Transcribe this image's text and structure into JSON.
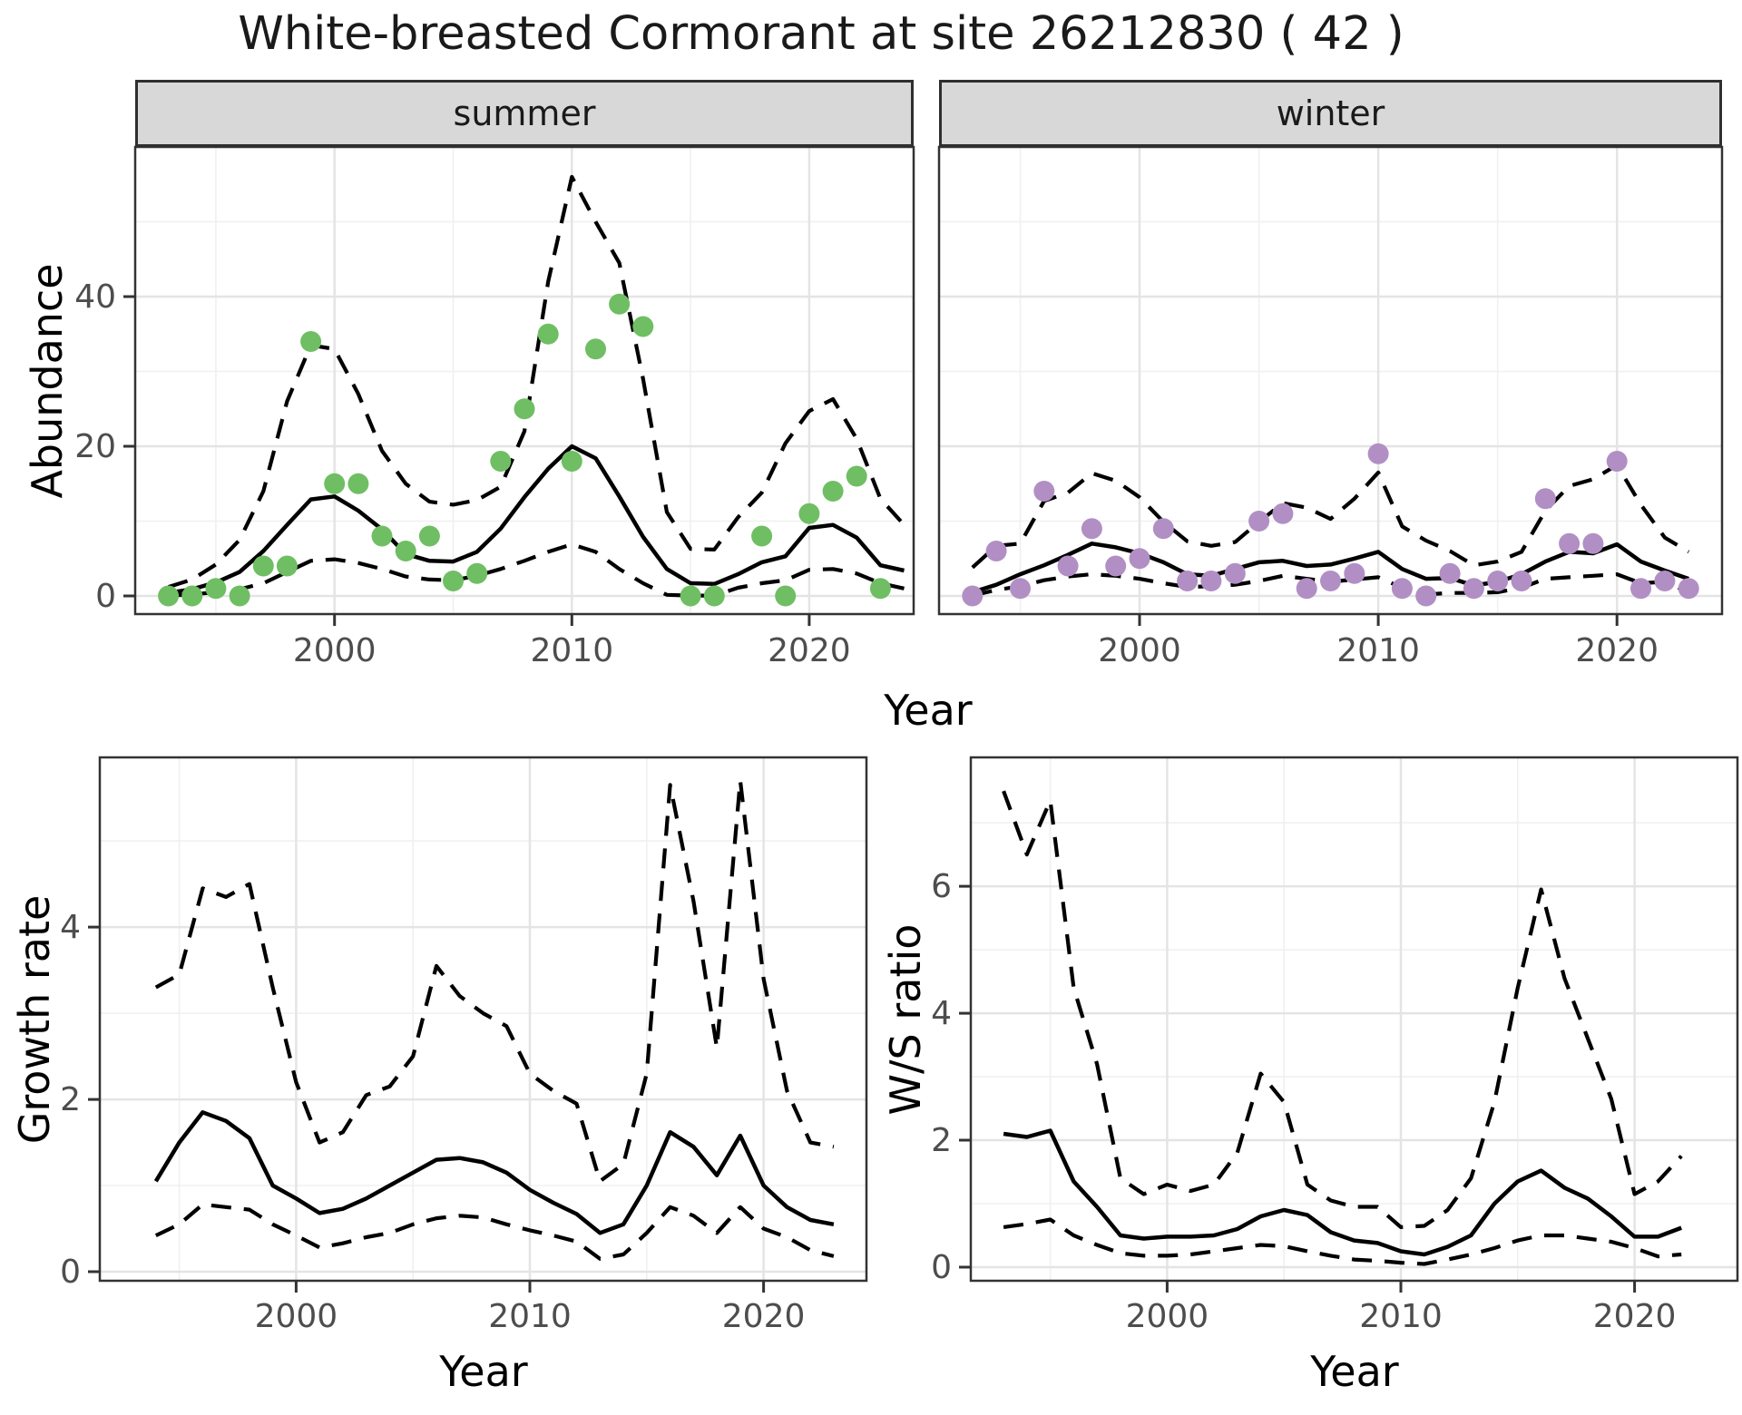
{
  "title": "White-breasted Cormorant at site 26212830 ( 42 )",
  "colors": {
    "summer_point": "#6FBE63",
    "winter_point": "#B18FC4",
    "fit_line": "#000000",
    "ci_line": "#000000",
    "strip_fill": "#D8D8D8",
    "panel_border": "#333333",
    "grid_major": "#E4E4E4",
    "grid_minor": "#F0F0F0",
    "tick_color": "#333333",
    "tick_label_color": "#4D4D4D"
  },
  "chart_data": [
    {
      "id": "abundance-summer",
      "panel": "summer",
      "type": "scatter",
      "facet_label": "summer",
      "xlabel": "Year",
      "ylabel": "Abundance",
      "xlim": [
        1991.6,
        2024.4
      ],
      "ylim": [
        -2.42,
        60.0
      ],
      "x_ticks": [
        2000,
        2010,
        2020
      ],
      "x_minor": [
        1995,
        2005,
        2015
      ],
      "y_ticks": [
        0,
        20,
        40
      ],
      "y_minor": [
        10,
        30,
        50
      ],
      "points": {
        "years": [
          1993,
          1994,
          1995,
          1996,
          1997,
          1998,
          1999,
          2000,
          2001,
          2002,
          2003,
          2004,
          2005,
          2006,
          2007,
          2008,
          2009,
          2010,
          2011,
          2012,
          2013,
          2015,
          2016,
          2018,
          2019,
          2020,
          2021,
          2022,
          2023
        ],
        "values": [
          0,
          0,
          1,
          0,
          4,
          4,
          34,
          15,
          15,
          8,
          6,
          8,
          2,
          3,
          18,
          25,
          35,
          18,
          33,
          39,
          36,
          0,
          0,
          8,
          0,
          11,
          14,
          16,
          1
        ]
      },
      "series": [
        {
          "name": "lower CI",
          "style": "dashed",
          "years": [
            1993,
            1994,
            1995,
            1996,
            1997,
            1998,
            1999,
            2000,
            2001,
            2002,
            2003,
            2004,
            2005,
            2006,
            2007,
            2008,
            2009,
            2010,
            2011,
            2012,
            2013,
            2014,
            2015,
            2016,
            2017,
            2018,
            2019,
            2020,
            2021,
            2022,
            2023,
            2024
          ],
          "values": [
            0.05,
            0.2,
            0.5,
            0.9,
            1.7,
            3.2,
            4.7,
            4.9,
            4.4,
            3.6,
            2.6,
            2.2,
            2.1,
            2.7,
            3.6,
            4.7,
            5.9,
            6.9,
            5.9,
            3.6,
            1.7,
            0.15,
            0.05,
            0.05,
            1.1,
            1.7,
            2.1,
            3.5,
            3.6,
            3.0,
            1.7,
            1.0
          ]
        },
        {
          "name": "upper CI",
          "style": "dashed",
          "years": [
            1993,
            1994,
            1995,
            1996,
            1997,
            1998,
            1999,
            2000,
            2001,
            2002,
            2003,
            2004,
            2005,
            2006,
            2007,
            2008,
            2009,
            2010,
            2011,
            2012,
            2013,
            2014,
            2015,
            2016,
            2017,
            2018,
            2019,
            2020,
            2021,
            2022,
            2023,
            2024
          ],
          "values": [
            1.2,
            2.2,
            4.2,
            7.5,
            14,
            26,
            33.5,
            33,
            27,
            19.4,
            15,
            12.6,
            12.2,
            12.8,
            14.6,
            22,
            42,
            56,
            50,
            44.5,
            29,
            11.2,
            6.3,
            6.2,
            10.5,
            13.8,
            20.4,
            24.7,
            26.3,
            21,
            13,
            9.5
          ]
        },
        {
          "name": "model fit",
          "style": "solid",
          "years": [
            1993,
            1994,
            1995,
            1996,
            1997,
            1998,
            1999,
            2000,
            2001,
            2002,
            2003,
            2004,
            2005,
            2006,
            2007,
            2008,
            2009,
            2010,
            2011,
            2012,
            2013,
            2014,
            2015,
            2016,
            2017,
            2018,
            2019,
            2020,
            2021,
            2022,
            2023,
            2024
          ],
          "values": [
            0.4,
            0.9,
            1.8,
            3.2,
            6.0,
            9.5,
            12.9,
            13.3,
            11.4,
            8.9,
            5.6,
            4.7,
            4.6,
            5.9,
            9.0,
            13.2,
            17.0,
            20.0,
            18.4,
            13.3,
            7.9,
            3.6,
            1.7,
            1.6,
            2.9,
            4.5,
            5.3,
            9.1,
            9.5,
            7.8,
            4.1,
            3.4
          ]
        }
      ]
    },
    {
      "id": "abundance-winter",
      "panel": "winter",
      "type": "scatter",
      "facet_label": "winter",
      "xlabel": "Year",
      "ylabel": "Abundance",
      "xlim": [
        1991.6,
        2024.4
      ],
      "ylim": [
        -2.42,
        60.0
      ],
      "x_ticks": [
        2000,
        2010,
        2020
      ],
      "x_minor": [
        1995,
        2005,
        2015
      ],
      "y_ticks": [
        0,
        20,
        40
      ],
      "y_minor": [
        10,
        30,
        50
      ],
      "points": {
        "years": [
          1993,
          1994,
          1995,
          1996,
          1997,
          1998,
          1999,
          2000,
          2001,
          2002,
          2003,
          2004,
          2005,
          2006,
          2007,
          2008,
          2009,
          2010,
          2011,
          2012,
          2013,
          2014,
          2015,
          2016,
          2017,
          2018,
          2019,
          2020,
          2021,
          2022,
          2023
        ],
        "values": [
          0,
          6,
          1,
          14,
          4,
          9,
          4,
          5,
          9,
          2,
          2,
          3,
          10,
          11,
          1,
          2,
          3,
          19,
          1,
          0,
          3,
          1,
          2,
          2,
          13,
          7,
          7,
          18,
          1,
          2,
          1
        ]
      },
      "series": [
        {
          "name": "lower CI",
          "style": "dashed",
          "years": [
            1993,
            1994,
            1995,
            1996,
            1997,
            1998,
            1999,
            2000,
            2001,
            2002,
            2003,
            2004,
            2005,
            2006,
            2007,
            2008,
            2009,
            2010,
            2011,
            2012,
            2013,
            2014,
            2015,
            2016,
            2017,
            2018,
            2019,
            2020,
            2021,
            2022,
            2023
          ],
          "values": [
            0.05,
            0.8,
            1.3,
            2.1,
            2.6,
            2.9,
            2.7,
            2.3,
            1.7,
            1.2,
            1.3,
            1.5,
            2.0,
            2.7,
            2.3,
            1.9,
            2.2,
            2.5,
            1.1,
            0.2,
            0.4,
            0.4,
            0.5,
            1.1,
            2.3,
            2.5,
            2.7,
            2.9,
            1.7,
            1.9,
            0.5
          ]
        },
        {
          "name": "upper CI",
          "style": "dashed",
          "years": [
            1993,
            1994,
            1995,
            1996,
            1997,
            1998,
            1999,
            2000,
            2001,
            2002,
            2003,
            2004,
            2005,
            2006,
            2007,
            2008,
            2009,
            2010,
            2011,
            2012,
            2013,
            2014,
            2015,
            2016,
            2017,
            2018,
            2019,
            2020,
            2021,
            2022,
            2023
          ],
          "values": [
            3.8,
            6.7,
            7.0,
            12.7,
            13.8,
            16.4,
            15.4,
            13.2,
            9.9,
            7.3,
            6.7,
            7.2,
            9.9,
            12.4,
            11.8,
            10.3,
            13.0,
            16.5,
            9.3,
            7.4,
            6.0,
            4.1,
            4.6,
            5.9,
            11.4,
            14.7,
            15.6,
            17.5,
            12.2,
            7.8,
            5.9
          ]
        },
        {
          "name": "model fit",
          "style": "solid",
          "years": [
            1993,
            1994,
            1995,
            1996,
            1997,
            1998,
            1999,
            2000,
            2001,
            2002,
            2003,
            2004,
            2005,
            2006,
            2007,
            2008,
            2009,
            2010,
            2011,
            2012,
            2013,
            2014,
            2015,
            2016,
            2017,
            2018,
            2019,
            2020,
            2021,
            2022,
            2023
          ],
          "values": [
            0.5,
            1.5,
            2.9,
            4.1,
            5.5,
            7.0,
            6.5,
            5.7,
            4.5,
            2.9,
            2.7,
            3.6,
            4.5,
            4.7,
            4.0,
            4.2,
            5.0,
            5.9,
            3.6,
            2.3,
            2.4,
            1.4,
            1.9,
            2.9,
            4.6,
            5.9,
            5.7,
            6.9,
            4.6,
            3.4,
            2.3
          ]
        }
      ]
    },
    {
      "id": "growth-rate",
      "panel": "growth",
      "type": "line",
      "xlabel": "Year",
      "ylabel": "Growth rate",
      "xlim": [
        1991.6,
        2024.4
      ],
      "ylim": [
        -0.105,
        5.97
      ],
      "x_ticks": [
        2000,
        2010,
        2020
      ],
      "x_minor": [
        1995,
        2005,
        2015
      ],
      "y_ticks": [
        0,
        2,
        4
      ],
      "y_minor": [
        1,
        3,
        5
      ],
      "series": [
        {
          "name": "lower CI",
          "style": "dashed",
          "years": [
            1994,
            1995,
            1996,
            1997,
            1998,
            1999,
            2000,
            2001,
            2002,
            2003,
            2004,
            2005,
            2006,
            2007,
            2008,
            2009,
            2010,
            2011,
            2012,
            2013,
            2014,
            2015,
            2016,
            2017,
            2018,
            2019,
            2020,
            2021,
            2022,
            2023
          ],
          "values": [
            0.42,
            0.55,
            0.78,
            0.75,
            0.72,
            0.55,
            0.42,
            0.28,
            0.33,
            0.4,
            0.45,
            0.55,
            0.62,
            0.65,
            0.63,
            0.55,
            0.48,
            0.42,
            0.35,
            0.15,
            0.2,
            0.45,
            0.75,
            0.65,
            0.45,
            0.75,
            0.5,
            0.4,
            0.25,
            0.18
          ]
        },
        {
          "name": "upper CI",
          "style": "dashed",
          "years": [
            1994,
            1995,
            1996,
            1997,
            1998,
            1999,
            2000,
            2001,
            2002,
            2003,
            2004,
            2005,
            2006,
            2007,
            2008,
            2009,
            2010,
            2011,
            2012,
            2013,
            2014,
            2015,
            2016,
            2017,
            2018,
            2019,
            2020,
            2021,
            2022,
            2023
          ],
          "values": [
            3.3,
            3.45,
            4.45,
            4.35,
            4.5,
            3.3,
            2.2,
            1.5,
            1.62,
            2.05,
            2.15,
            2.5,
            3.55,
            3.2,
            3.0,
            2.85,
            2.3,
            2.1,
            1.95,
            1.05,
            1.25,
            2.3,
            5.65,
            4.3,
            2.6,
            5.7,
            3.4,
            2.1,
            1.5,
            1.45
          ]
        },
        {
          "name": "model fit",
          "style": "solid",
          "years": [
            1994,
            1995,
            1996,
            1997,
            1998,
            1999,
            2000,
            2001,
            2002,
            2003,
            2004,
            2005,
            2006,
            2007,
            2008,
            2009,
            2010,
            2011,
            2012,
            2013,
            2014,
            2015,
            2016,
            2017,
            2018,
            2019,
            2020,
            2021,
            2022,
            2023
          ],
          "values": [
            1.05,
            1.5,
            1.85,
            1.75,
            1.55,
            1.0,
            0.85,
            0.68,
            0.73,
            0.85,
            1.0,
            1.15,
            1.3,
            1.32,
            1.27,
            1.15,
            0.95,
            0.8,
            0.67,
            0.45,
            0.55,
            1.0,
            1.62,
            1.45,
            1.12,
            1.58,
            1.0,
            0.75,
            0.6,
            0.55
          ]
        }
      ]
    },
    {
      "id": "ws-ratio",
      "panel": "ws",
      "type": "line",
      "xlabel": "Year",
      "ylabel": "W/S ratio",
      "xlim": [
        1991.6,
        2024.4
      ],
      "ylim": [
        -0.214,
        8.03
      ],
      "x_ticks": [
        2000,
        2010,
        2020
      ],
      "x_minor": [
        1995,
        2005,
        2015
      ],
      "y_ticks": [
        0,
        2,
        4,
        6
      ],
      "y_minor": [
        1,
        3,
        5,
        7
      ],
      "series": [
        {
          "name": "lower CI",
          "style": "dashed",
          "years": [
            1993,
            1994,
            1995,
            1996,
            1997,
            1998,
            1999,
            2000,
            2001,
            2002,
            2003,
            2004,
            2005,
            2006,
            2007,
            2008,
            2009,
            2010,
            2011,
            2012,
            2013,
            2014,
            2015,
            2016,
            2017,
            2018,
            2019,
            2020,
            2021,
            2022
          ],
          "values": [
            0.63,
            0.68,
            0.75,
            0.5,
            0.35,
            0.22,
            0.18,
            0.18,
            0.2,
            0.25,
            0.3,
            0.35,
            0.33,
            0.25,
            0.18,
            0.12,
            0.1,
            0.07,
            0.05,
            0.12,
            0.2,
            0.3,
            0.42,
            0.5,
            0.5,
            0.45,
            0.4,
            0.3,
            0.17,
            0.2
          ]
        },
        {
          "name": "upper CI",
          "style": "dashed",
          "years": [
            1993,
            1994,
            1995,
            1996,
            1997,
            1998,
            1999,
            2000,
            2001,
            2002,
            2003,
            2004,
            2005,
            2006,
            2007,
            2008,
            2009,
            2010,
            2011,
            2012,
            2013,
            2014,
            2015,
            2016,
            2017,
            2018,
            2019,
            2020,
            2021,
            2022
          ],
          "values": [
            7.5,
            6.5,
            7.35,
            4.4,
            3.2,
            1.4,
            1.15,
            1.3,
            1.2,
            1.3,
            1.8,
            3.05,
            2.6,
            1.3,
            1.05,
            0.95,
            0.95,
            0.63,
            0.65,
            0.9,
            1.4,
            2.6,
            4.4,
            5.95,
            4.55,
            3.6,
            2.65,
            1.15,
            1.35,
            1.75
          ]
        },
        {
          "name": "model fit",
          "style": "solid",
          "years": [
            1993,
            1994,
            1995,
            1996,
            1997,
            1998,
            1999,
            2000,
            2001,
            2002,
            2003,
            2004,
            2005,
            2006,
            2007,
            2008,
            2009,
            2010,
            2011,
            2012,
            2013,
            2014,
            2015,
            2016,
            2017,
            2018,
            2019,
            2020,
            2021,
            2022
          ],
          "values": [
            2.1,
            2.05,
            2.15,
            1.35,
            0.95,
            0.5,
            0.45,
            0.48,
            0.48,
            0.5,
            0.6,
            0.8,
            0.9,
            0.82,
            0.55,
            0.42,
            0.38,
            0.25,
            0.2,
            0.32,
            0.5,
            1.0,
            1.35,
            1.52,
            1.25,
            1.08,
            0.8,
            0.48,
            0.48,
            0.62
          ]
        }
      ]
    }
  ]
}
